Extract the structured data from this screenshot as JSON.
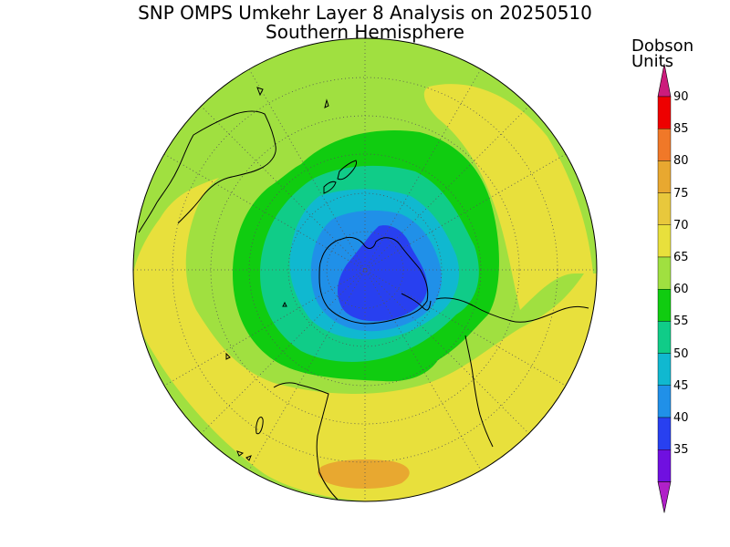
{
  "title": "SNP OMPS Umkehr Layer 8 Analysis on 20250510",
  "subtitle": "Southern Hemisphere",
  "colorbar": {
    "title_line1": "Dobson",
    "title_line2": "Units",
    "levels": [
      {
        "label": "90",
        "color": "#ee0000"
      },
      {
        "label": "85",
        "color": "#f07828"
      },
      {
        "label": "80",
        "color": "#e8a830"
      },
      {
        "label": "75",
        "color": "#e8c83c"
      },
      {
        "label": "70",
        "color": "#e8e03c"
      },
      {
        "label": "65",
        "color": "#a0e040"
      },
      {
        "label": "60",
        "color": "#10cc10"
      },
      {
        "label": "55",
        "color": "#10cc88"
      },
      {
        "label": "50",
        "color": "#10b8d0"
      },
      {
        "label": "45",
        "color": "#2090e8"
      },
      {
        "label": "40",
        "color": "#2840f0"
      },
      {
        "label": "35",
        "color": "#7010e0"
      }
    ],
    "top_arrow_color": "#cc1c7c",
    "bottom_arrow_color": "#b020c8"
  }
}
